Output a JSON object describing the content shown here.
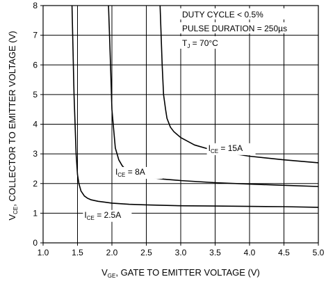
{
  "chart_data": {
    "type": "line",
    "title": "",
    "xlabel": {
      "prefix": "V",
      "sub": "GE",
      "rest": ", GATE TO EMITTER VOLTAGE (V)"
    },
    "ylabel": {
      "prefix": "V",
      "sub": "CE",
      "rest": ", COLLECTOR TO EMITTER VOLTAGE (V)"
    },
    "xlim": [
      1.0,
      5.0
    ],
    "ylim": [
      0,
      8
    ],
    "xticks": [
      "1.0",
      "1.5",
      "2.0",
      "2.5",
      "3.0",
      "3.5",
      "4.0",
      "4.5",
      "5.0"
    ],
    "yticks": [
      "0",
      "1",
      "2",
      "3",
      "4",
      "5",
      "6",
      "7",
      "8"
    ],
    "grid": true,
    "conditions": [
      {
        "text": "DUTY CYCLE < 0.5%"
      },
      {
        "text": "PULSE DURATION = 250µs"
      },
      {
        "prefix": "T",
        "sub": "J",
        "rest": " = 70°C"
      }
    ],
    "series": [
      {
        "name": {
          "prefix": "I",
          "sub": "CE",
          "rest": " = 2.5A"
        },
        "x": [
          1.42,
          1.45,
          1.48,
          1.5,
          1.52,
          1.55,
          1.6,
          1.65,
          1.7,
          1.8,
          1.9,
          2.0,
          2.25,
          2.5,
          3.0,
          3.5,
          4.0,
          4.5,
          5.0
        ],
        "y": [
          8.0,
          5.0,
          3.0,
          2.3,
          2.0,
          1.75,
          1.58,
          1.5,
          1.45,
          1.4,
          1.37,
          1.34,
          1.3,
          1.28,
          1.25,
          1.24,
          1.23,
          1.22,
          1.2
        ]
      },
      {
        "name": {
          "prefix": "I",
          "sub": "CE",
          "rest": " = 8A"
        },
        "x": [
          1.95,
          1.98,
          2.0,
          2.03,
          2.05,
          2.1,
          2.15,
          2.2,
          2.3,
          2.4,
          2.5,
          2.75,
          3.0,
          3.5,
          4.0,
          4.5,
          5.0
        ],
        "y": [
          8.0,
          6.0,
          4.5,
          3.7,
          3.2,
          2.8,
          2.6,
          2.48,
          2.35,
          2.28,
          2.22,
          2.15,
          2.1,
          2.03,
          1.98,
          1.94,
          1.9
        ]
      },
      {
        "name": {
          "prefix": "I",
          "sub": "CE",
          "rest": " = 15A"
        },
        "x": [
          2.7,
          2.73,
          2.75,
          2.78,
          2.8,
          2.85,
          2.9,
          3.0,
          3.2,
          3.5,
          4.0,
          4.5,
          5.0
        ],
        "y": [
          8.0,
          6.0,
          5.0,
          4.5,
          4.2,
          3.9,
          3.75,
          3.55,
          3.3,
          3.1,
          2.92,
          2.8,
          2.7
        ]
      }
    ],
    "series_label_anchor": [
      {
        "x": 1.6,
        "y": 0.85
      },
      {
        "x": 2.05,
        "y": 2.3
      },
      {
        "x": 3.4,
        "y": 3.1
      }
    ]
  }
}
